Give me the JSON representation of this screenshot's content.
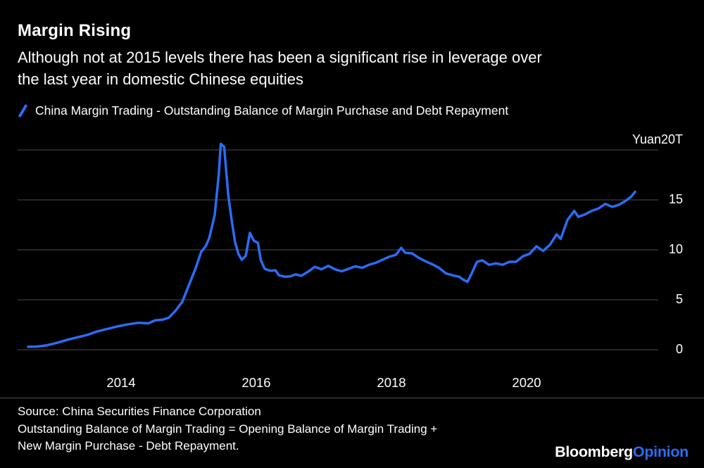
{
  "header": {
    "title": "Margin Rising",
    "subtitle_line1": "Although not at 2015 levels there has been a significant rise in leverage over",
    "subtitle_line2": "the last year in domestic Chinese equities"
  },
  "legend": {
    "label": "China Margin Trading - Outstanding Balance of Margin Purchase and Debt Repayment"
  },
  "chart_data": {
    "type": "line",
    "title": "Margin Rising",
    "subtitle": "Although not at 2015 levels there has been a significant rise in leverage over the last year in domestic Chinese equities",
    "unit_label": "Yuan20T",
    "xlabel": "",
    "ylabel": "Yuan (trillions)",
    "ylim": [
      0,
      20
    ],
    "xlim": [
      2012.6,
      2021.75
    ],
    "yticks": [
      "0",
      "5",
      "10",
      "15"
    ],
    "ytick_values": [
      0,
      5,
      10,
      15,
      20
    ],
    "xticks": [
      "2014",
      "2016",
      "2018",
      "2020"
    ],
    "xtick_values": [
      2014,
      2016,
      2018,
      2020
    ],
    "grid": "horizontal",
    "legend_position": "top-left",
    "series": [
      {
        "name": "China Margin Trading - Outstanding Balance of Margin Purchase and Debt Repayment",
        "color": "#2A6CF6",
        "points": [
          [
            2012.62,
            0.3
          ],
          [
            2012.75,
            0.32
          ],
          [
            2012.9,
            0.45
          ],
          [
            2013.05,
            0.7
          ],
          [
            2013.2,
            1.0
          ],
          [
            2013.35,
            1.25
          ],
          [
            2013.5,
            1.5
          ],
          [
            2013.65,
            1.85
          ],
          [
            2013.8,
            2.1
          ],
          [
            2013.95,
            2.35
          ],
          [
            2014.1,
            2.55
          ],
          [
            2014.25,
            2.7
          ],
          [
            2014.4,
            2.65
          ],
          [
            2014.5,
            2.95
          ],
          [
            2014.6,
            3.0
          ],
          [
            2014.7,
            3.2
          ],
          [
            2014.8,
            3.9
          ],
          [
            2014.9,
            4.8
          ],
          [
            2015.0,
            6.5
          ],
          [
            2015.1,
            8.2
          ],
          [
            2015.18,
            9.8
          ],
          [
            2015.25,
            10.4
          ],
          [
            2015.3,
            11.2
          ],
          [
            2015.38,
            13.5
          ],
          [
            2015.44,
            17.5
          ],
          [
            2015.47,
            20.6
          ],
          [
            2015.52,
            20.3
          ],
          [
            2015.58,
            15.5
          ],
          [
            2015.63,
            13.0
          ],
          [
            2015.68,
            10.8
          ],
          [
            2015.73,
            9.6
          ],
          [
            2015.78,
            9.0
          ],
          [
            2015.84,
            9.4
          ],
          [
            2015.9,
            11.7
          ],
          [
            2015.96,
            10.9
          ],
          [
            2016.02,
            10.7
          ],
          [
            2016.06,
            9.0
          ],
          [
            2016.12,
            8.1
          ],
          [
            2016.2,
            7.9
          ],
          [
            2016.28,
            7.95
          ],
          [
            2016.33,
            7.45
          ],
          [
            2016.42,
            7.3
          ],
          [
            2016.5,
            7.35
          ],
          [
            2016.58,
            7.55
          ],
          [
            2016.66,
            7.4
          ],
          [
            2016.76,
            7.8
          ],
          [
            2016.86,
            8.3
          ],
          [
            2016.96,
            8.05
          ],
          [
            2017.06,
            8.4
          ],
          [
            2017.16,
            8.05
          ],
          [
            2017.26,
            7.85
          ],
          [
            2017.36,
            8.1
          ],
          [
            2017.46,
            8.35
          ],
          [
            2017.56,
            8.2
          ],
          [
            2017.66,
            8.5
          ],
          [
            2017.76,
            8.7
          ],
          [
            2017.86,
            9.0
          ],
          [
            2017.96,
            9.3
          ],
          [
            2018.06,
            9.5
          ],
          [
            2018.14,
            10.2
          ],
          [
            2018.2,
            9.7
          ],
          [
            2018.3,
            9.65
          ],
          [
            2018.4,
            9.2
          ],
          [
            2018.5,
            8.85
          ],
          [
            2018.6,
            8.55
          ],
          [
            2018.7,
            8.2
          ],
          [
            2018.8,
            7.65
          ],
          [
            2018.9,
            7.45
          ],
          [
            2019.0,
            7.3
          ],
          [
            2019.06,
            7.0
          ],
          [
            2019.12,
            6.8
          ],
          [
            2019.18,
            7.6
          ],
          [
            2019.26,
            8.8
          ],
          [
            2019.34,
            8.95
          ],
          [
            2019.44,
            8.5
          ],
          [
            2019.54,
            8.65
          ],
          [
            2019.64,
            8.5
          ],
          [
            2019.74,
            8.8
          ],
          [
            2019.84,
            8.8
          ],
          [
            2019.94,
            9.35
          ],
          [
            2020.04,
            9.6
          ],
          [
            2020.14,
            10.35
          ],
          [
            2020.24,
            9.9
          ],
          [
            2020.34,
            10.5
          ],
          [
            2020.44,
            11.55
          ],
          [
            2020.5,
            11.1
          ],
          [
            2020.6,
            13.0
          ],
          [
            2020.7,
            13.9
          ],
          [
            2020.76,
            13.3
          ],
          [
            2020.86,
            13.55
          ],
          [
            2020.96,
            13.9
          ],
          [
            2021.06,
            14.15
          ],
          [
            2021.16,
            14.6
          ],
          [
            2021.26,
            14.3
          ],
          [
            2021.36,
            14.5
          ],
          [
            2021.46,
            14.9
          ],
          [
            2021.54,
            15.3
          ],
          [
            2021.6,
            15.8
          ]
        ]
      }
    ]
  },
  "footer": {
    "source_line1": "Source: China Securities Finance Corporation",
    "source_line2": "Outstanding Balance of Margin Trading = Opening Balance of Margin Trading +",
    "source_line3": "New Margin Purchase - Debt Repayment.",
    "logo_brand": "Bloomberg",
    "logo_accent": "Opinion"
  },
  "colors": {
    "background": "#000000",
    "text": "#FFFFFF",
    "accent": "#2A6CF6",
    "grid": "#4D4D4D"
  }
}
